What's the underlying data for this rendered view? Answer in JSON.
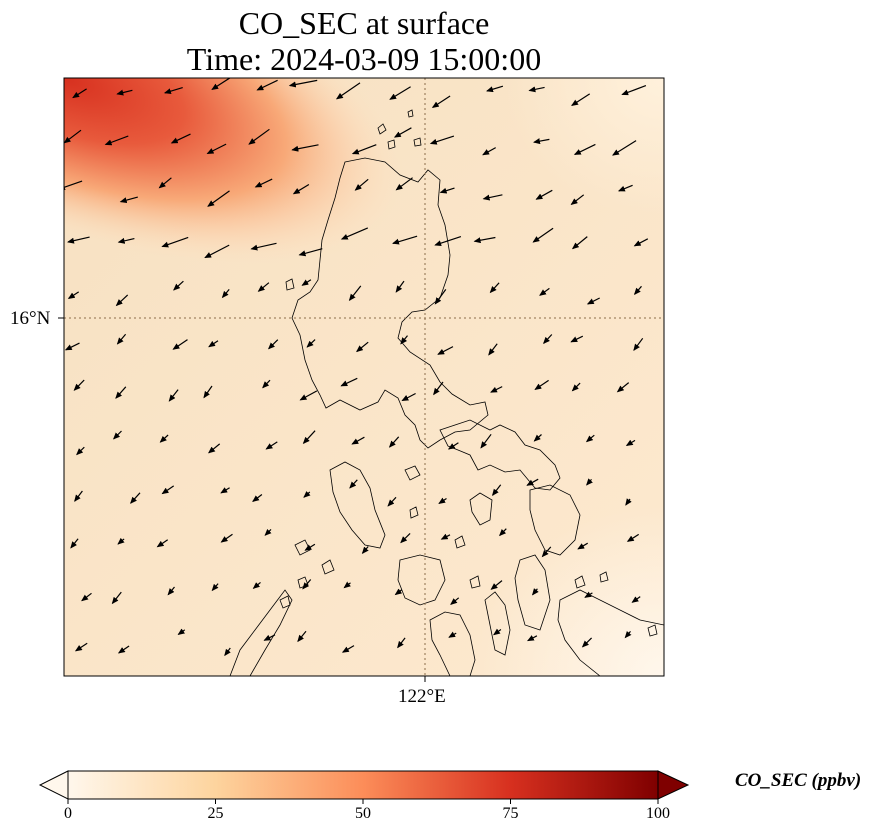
{
  "title": {
    "line1": "CO_SEC at surface",
    "line2": "Time: 2024-03-09 15:00:00"
  },
  "map": {
    "lat_tick": "16°N",
    "lon_tick": "122°E",
    "gridline_color": "#8b6d4a",
    "coast_color": "#000000",
    "wind_vector_color": "#000000"
  },
  "colorbar": {
    "label": "CO_SEC (ppbv)",
    "colormap": "OrRd",
    "min": 0,
    "max": 100,
    "ticks": [
      "0",
      "25",
      "50",
      "75",
      "100"
    ],
    "extend": "both",
    "colors": [
      "#fff7ec",
      "#fdd49e",
      "#fc8d59",
      "#d7301f",
      "#7f0000"
    ]
  }
}
